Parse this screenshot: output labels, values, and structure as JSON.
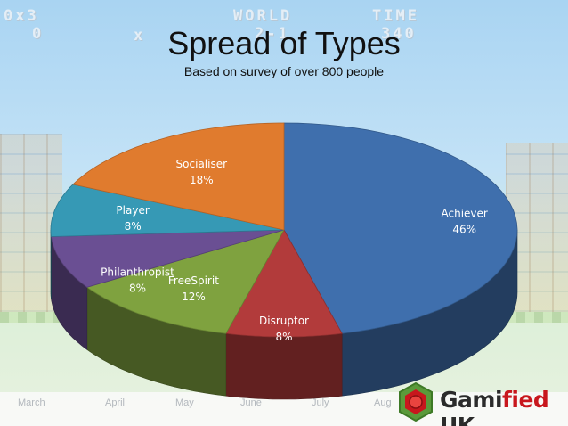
{
  "header": {
    "title": "Spread of Types",
    "subtitle": "Based on survey of over 800 people"
  },
  "background": {
    "hud": [
      "0x3",
      "0",
      "WORLD",
      "2-1",
      "TIME",
      "340",
      "x"
    ],
    "months": [
      "March",
      "April",
      "May",
      "June",
      "July",
      "Aug"
    ]
  },
  "logo": {
    "text_dark1": "Gami",
    "text_red": "fied",
    "text_dark2": " UK"
  },
  "chart_data": {
    "type": "pie",
    "style": "3d-tilted",
    "title": "Spread of Types",
    "subtitle": "Based on survey of over 800 people",
    "slices": [
      {
        "label": "Achiever",
        "value": 46,
        "display": "46%",
        "color": "#3f6fad"
      },
      {
        "label": "Disruptor",
        "value": 8,
        "display": "8%",
        "color": "#b23b3b"
      },
      {
        "label": "FreeSpirit",
        "value": 12,
        "display": "12%",
        "color": "#7fa23f"
      },
      {
        "label": "Philanthropist",
        "value": 8,
        "display": "8%",
        "color": "#6a4f93"
      },
      {
        "label": "Player",
        "value": 8,
        "display": "8%",
        "color": "#3699b5"
      },
      {
        "label": "Socialiser",
        "value": 18,
        "display": "18%",
        "color": "#e07b2e"
      }
    ]
  }
}
